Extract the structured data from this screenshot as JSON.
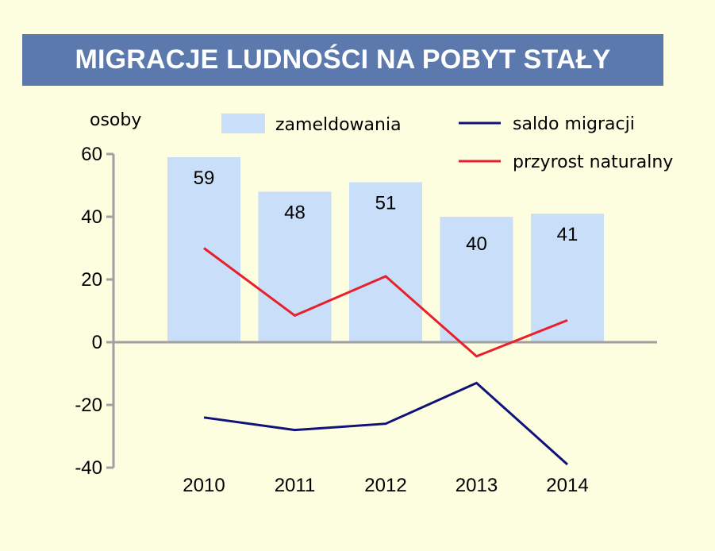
{
  "chart_data": {
    "type": "bar",
    "title": "MIGRACJE LUDNOŚCI NA POBYT STAŁY",
    "ylabel": "osoby",
    "ylim": [
      -40,
      60
    ],
    "yticks": [
      60,
      40,
      20,
      0,
      -20,
      -40
    ],
    "categories": [
      "2010",
      "2011",
      "2012",
      "2013",
      "2014"
    ],
    "bars": {
      "name": "zameldowania",
      "values": [
        59,
        48,
        51,
        40,
        41
      ],
      "labels": [
        "59",
        "48",
        "51",
        "40",
        "41"
      ],
      "color": "#c9def8"
    },
    "series": [
      {
        "name": "saldo migracji",
        "type": "line",
        "values": [
          -24,
          -28,
          -26,
          -13,
          -39
        ],
        "color": "#10127a"
      },
      {
        "name": "przyrost naturalny",
        "type": "line",
        "values": [
          30,
          8.5,
          21,
          -4.5,
          7
        ],
        "color": "#e8202e"
      }
    ],
    "legend_position": "top"
  },
  "colors": {
    "background": "#fdfde0",
    "title_banner": "#5b79ad",
    "axis": "#a0a0a0"
  }
}
